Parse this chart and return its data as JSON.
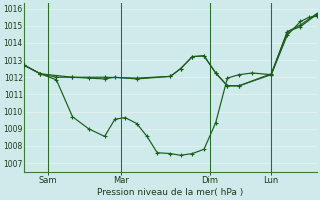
{
  "background_color": "#ceeaea",
  "grid_color": "#c8e8e8",
  "grid_color2": "#ffffff",
  "line_color": "#1a5c1a",
  "marker_color": "#1a5c1a",
  "xlabel": "Pression niveau de la mer( hPa )",
  "ylim": [
    1006.5,
    1016.3
  ],
  "yticks": [
    1007,
    1008,
    1009,
    1010,
    1011,
    1012,
    1013,
    1014,
    1015,
    1016
  ],
  "day_labels": [
    "Sam",
    "Mar",
    "Dim",
    "Lun"
  ],
  "day_ticks": [
    0.08,
    0.33,
    0.635,
    0.845
  ],
  "xlim": [
    0,
    1.0
  ],
  "series": [
    {
      "x": [
        0.0,
        0.055,
        0.11,
        0.165,
        0.22,
        0.275,
        0.31,
        0.345,
        0.385,
        0.42,
        0.455,
        0.5,
        0.535,
        0.575,
        0.615,
        0.655,
        0.695,
        0.735,
        0.78,
        0.845,
        0.9,
        0.945,
        0.975,
        1.0
      ],
      "y": [
        1012.7,
        1012.2,
        1011.85,
        1009.7,
        1009.0,
        1008.55,
        1009.55,
        1009.65,
        1009.3,
        1008.55,
        1007.6,
        1007.55,
        1007.45,
        1007.55,
        1007.8,
        1009.35,
        1011.95,
        1012.15,
        1012.25,
        1012.15,
        1014.45,
        1015.25,
        1015.5,
        1015.55
      ]
    },
    {
      "x": [
        0.0,
        0.055,
        0.11,
        0.165,
        0.22,
        0.275,
        0.31,
        0.385,
        0.5,
        0.535,
        0.575,
        0.615,
        0.655,
        0.695,
        0.735,
        0.845,
        0.9,
        0.945,
        1.0
      ],
      "y": [
        1012.7,
        1012.2,
        1012.0,
        1012.0,
        1011.95,
        1011.9,
        1012.0,
        1011.9,
        1012.05,
        1012.5,
        1013.2,
        1013.25,
        1012.25,
        1011.5,
        1011.5,
        1012.15,
        1014.65,
        1014.95,
        1015.65
      ]
    },
    {
      "x": [
        0.0,
        0.055,
        0.165,
        0.275,
        0.385,
        0.5,
        0.535,
        0.575,
        0.615,
        0.655,
        0.695,
        0.735,
        0.845,
        0.9,
        0.945,
        1.0
      ],
      "y": [
        1012.7,
        1012.2,
        1012.0,
        1012.0,
        1011.95,
        1012.05,
        1012.5,
        1013.2,
        1013.25,
        1012.25,
        1011.5,
        1011.5,
        1012.2,
        1014.65,
        1015.05,
        1015.7
      ]
    }
  ]
}
